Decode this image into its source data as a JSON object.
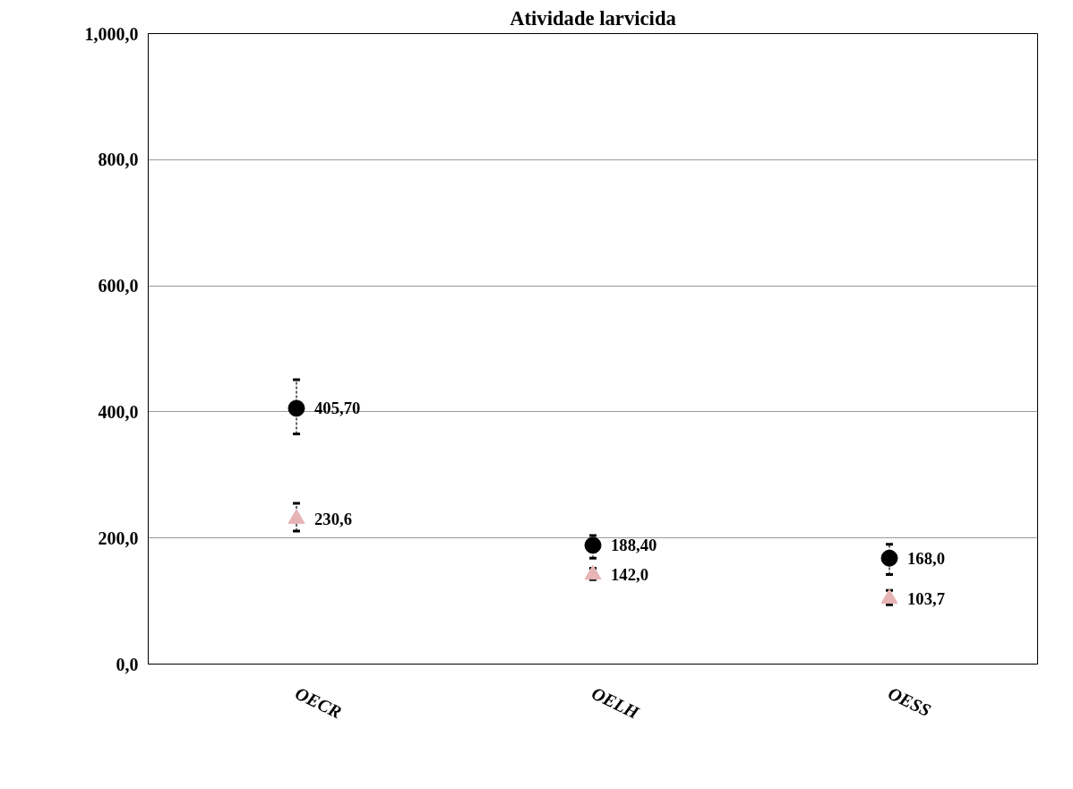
{
  "chart_data": {
    "type": "scatter",
    "title": "Atividade larvicida",
    "categories": [
      "OECR",
      "OELH",
      "OESS"
    ],
    "series": [
      {
        "color": "#000000",
        "marker": "circle",
        "values": [
          405.7,
          188.4,
          168.0
        ],
        "errors": [
          [
            365,
            451
          ],
          [
            168,
            204
          ],
          [
            142,
            190
          ]
        ],
        "value_labels": [
          "405,70",
          "188,40",
          "168,0"
        ]
      },
      {
        "color": "#e6b4b4",
        "marker": "triangle",
        "values": [
          230.6,
          142.0,
          103.7
        ],
        "errors": [
          [
            211,
            255
          ],
          [
            134,
            152
          ],
          [
            94,
            117
          ]
        ],
        "value_labels": [
          "230,6",
          "142,0",
          "103,7"
        ]
      }
    ],
    "ylim": [
      0,
      1000
    ],
    "yticks": [
      {
        "value": 0,
        "label": "0,0"
      },
      {
        "value": 200,
        "label": "200,0"
      },
      {
        "value": 400,
        "label": "400,0"
      },
      {
        "value": 600,
        "label": "600,0"
      },
      {
        "value": 800,
        "label": "800,0"
      },
      {
        "value": 1000,
        "label": "1,000,0"
      }
    ],
    "grid": "y"
  }
}
